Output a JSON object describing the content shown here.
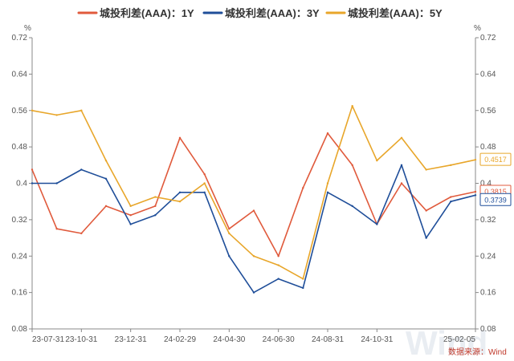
{
  "chart_data": {
    "type": "line",
    "title": "",
    "y_unit": "%",
    "ylim": [
      0.08,
      0.72
    ],
    "y_ticks": [
      "0.72",
      "0.64",
      "0.56",
      "0.48",
      "0.4",
      "0.32",
      "0.24",
      "0.16",
      "0.08"
    ],
    "x": [
      "2023-07-31",
      "2023-09-15",
      "2023-10-31",
      "2023-12-07",
      "2023-12-31",
      "2024-02-01",
      "2024-02-29",
      "2024-04-01",
      "2024-04-30",
      "2024-05-31",
      "2024-06-30",
      "2024-07-31",
      "2024-08-31",
      "2024-10-01",
      "2024-10-31",
      "2024-11-30",
      "2024-12-31",
      "2025-01-15",
      "2025-02-05"
    ],
    "x_tick_labels": [
      "23-07-31",
      "23-10-31",
      "23-12-31",
      "24-02-29",
      "24-04-30",
      "24-06-30",
      "24-08-31",
      "24-10-31",
      "25-02-05"
    ],
    "x_tick_positions": [
      0,
      2,
      4,
      6,
      8,
      10,
      12,
      14,
      18
    ],
    "series": [
      {
        "name": "城投利差(AAA)：1Y",
        "color": "#e05a3c",
        "end_label": "0.3815",
        "values": [
          0.43,
          0.3,
          0.29,
          0.35,
          0.33,
          0.35,
          0.5,
          0.42,
          0.3,
          0.34,
          0.24,
          0.39,
          0.51,
          0.44,
          0.31,
          0.4,
          0.34,
          0.37,
          0.3815
        ]
      },
      {
        "name": "城投利差(AAA)：3Y",
        "color": "#1f4e99",
        "end_label": "0.3739",
        "values": [
          0.4,
          0.4,
          0.43,
          0.41,
          0.31,
          0.33,
          0.38,
          0.38,
          0.24,
          0.16,
          0.19,
          0.17,
          0.38,
          0.35,
          0.31,
          0.44,
          0.28,
          0.36,
          0.3739
        ]
      },
      {
        "name": "城投利差(AAA)：5Y",
        "color": "#e8a62a",
        "end_label": "0.4517",
        "values": [
          0.56,
          0.55,
          0.56,
          0.45,
          0.35,
          0.37,
          0.36,
          0.4,
          0.29,
          0.24,
          0.22,
          0.19,
          0.4,
          0.57,
          0.45,
          0.5,
          0.43,
          0.44,
          0.4517
        ]
      }
    ],
    "legend_position": "top-center",
    "grid": false,
    "source": "数据来源：Wind",
    "watermark": "Wind"
  }
}
